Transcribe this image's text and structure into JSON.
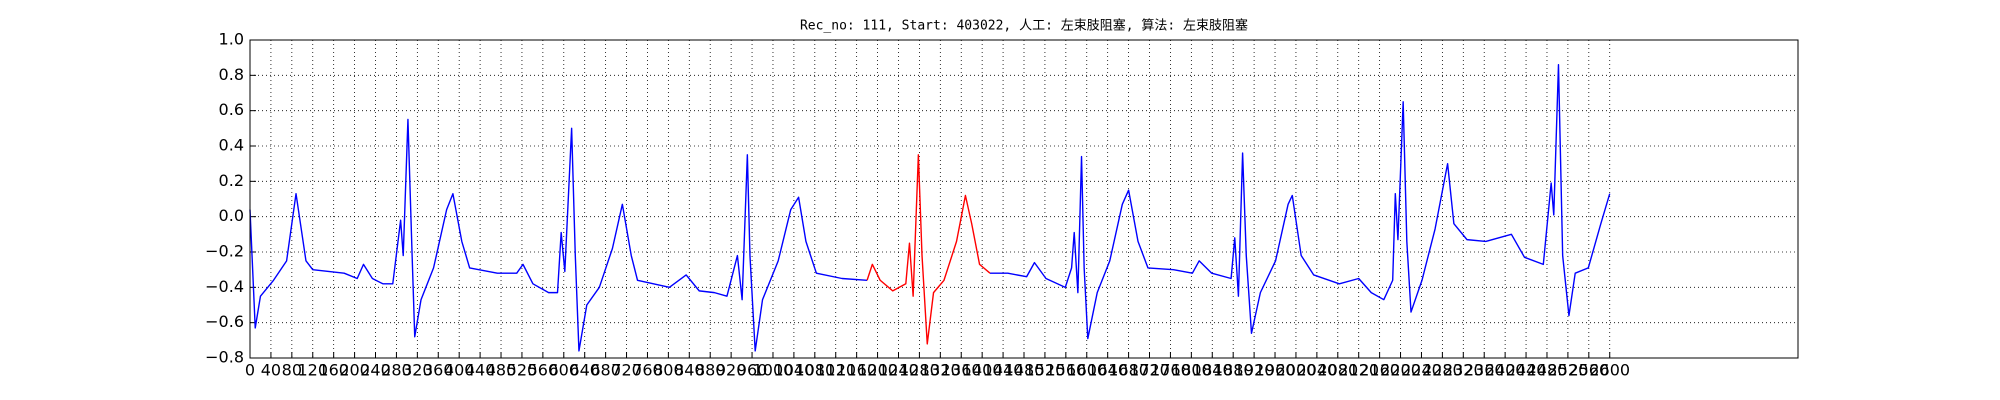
{
  "chart_data": {
    "type": "line",
    "title": "Rec_no: 111, Start: 403022, 人工: 左束肢阻塞, 算法: 左束肢阻塞",
    "x": [
      0,
      10,
      20,
      45,
      70,
      88,
      107,
      120,
      180,
      205,
      217,
      234,
      254,
      273,
      288,
      293,
      302,
      310,
      315,
      327,
      351,
      376,
      388,
      405,
      420,
      473,
      510,
      522,
      541,
      571,
      588,
      595,
      602,
      615,
      622,
      629,
      644,
      668,
      693,
      712,
      729,
      741,
      802,
      834,
      859,
      888,
      912,
      932,
      941,
      951,
      956,
      966,
      980,
      1010,
      1034,
      1049,
      1063,
      1083,
      1132,
      1180,
      1190,
      1205,
      1229,
      1254,
      1261,
      1268,
      1278,
      1285,
      1295,
      1307,
      1327,
      1351,
      1368,
      1380,
      1395,
      1415,
      1449,
      1485,
      1500,
      1522,
      1559,
      1571,
      1576,
      1583,
      1590,
      1595,
      1602,
      1620,
      1644,
      1668,
      1680,
      1698,
      1717,
      1766,
      1802,
      1815,
      1839,
      1876,
      1883,
      1890,
      1898,
      1905,
      1915,
      1932,
      1961,
      1985,
      1993,
      2010,
      2034,
      2083,
      2120,
      2144,
      2168,
      2185,
      2190,
      2195,
      2205,
      2212,
      2220,
      2241,
      2266,
      2290,
      2302,
      2327,
      2363,
      2412,
      2437,
      2473,
      2488,
      2493,
      2502,
      2510,
      2522,
      2534,
      2559,
      2583,
      2600
    ],
    "series": [
      {
        "color": "#0000ff",
        "values": [
          0.04,
          -0.63,
          -0.45,
          -0.36,
          -0.25,
          0.13,
          -0.25,
          -0.3,
          -0.32,
          -0.35,
          -0.27,
          -0.35,
          -0.38,
          -0.38,
          -0.02,
          -0.22,
          0.55,
          -0.22,
          -0.68,
          -0.47,
          -0.29,
          0.04,
          0.13,
          -0.14,
          -0.29,
          -0.32,
          -0.32,
          -0.27,
          -0.38,
          -0.43,
          -0.43,
          -0.09,
          -0.31,
          0.5,
          -0.22,
          -0.76,
          -0.5,
          -0.4,
          -0.18,
          0.07,
          -0.22,
          -0.36,
          -0.4,
          -0.33,
          -0.42,
          -0.43,
          -0.45,
          -0.22,
          -0.47,
          0.35,
          -0.22,
          -0.76,
          -0.47,
          -0.25,
          0.04,
          0.11,
          -0.14,
          -0.32,
          -0.35,
          -0.36,
          null,
          null,
          null,
          null,
          null,
          null,
          null,
          null,
          null,
          null,
          null,
          null,
          null,
          null,
          null,
          -0.32,
          -0.32,
          -0.34,
          -0.26,
          -0.35,
          -0.4,
          -0.29,
          -0.09,
          -0.43,
          0.34,
          -0.29,
          -0.69,
          -0.43,
          -0.25,
          0.07,
          0.15,
          -0.14,
          -0.29,
          -0.3,
          -0.32,
          -0.25,
          -0.32,
          -0.35,
          -0.12,
          -0.45,
          0.36,
          -0.22,
          -0.66,
          -0.43,
          -0.25,
          0.07,
          0.12,
          -0.22,
          -0.33,
          -0.38,
          -0.35,
          -0.43,
          -0.47,
          -0.36,
          0.13,
          -0.13,
          0.65,
          -0.14,
          -0.54,
          -0.36,
          -0.07,
          0.3,
          -0.04,
          -0.13,
          -0.14,
          -0.1,
          -0.23,
          -0.27,
          0.19,
          0.01,
          0.86,
          -0.22,
          -0.56,
          -0.32,
          -0.29,
          -0.04,
          0.13
        ]
      },
      {
        "color": "#ff0000",
        "values": [
          null,
          null,
          null,
          null,
          null,
          null,
          null,
          null,
          null,
          null,
          null,
          null,
          null,
          null,
          null,
          null,
          null,
          null,
          null,
          null,
          null,
          null,
          null,
          null,
          null,
          null,
          null,
          null,
          null,
          null,
          null,
          null,
          null,
          null,
          null,
          null,
          null,
          null,
          null,
          null,
          null,
          null,
          null,
          null,
          null,
          null,
          null,
          null,
          null,
          null,
          null,
          null,
          null,
          null,
          null,
          null,
          null,
          null,
          null,
          -0.36,
          -0.27,
          -0.36,
          -0.42,
          -0.38,
          -0.15,
          -0.45,
          0.35,
          -0.22,
          -0.72,
          -0.43,
          -0.36,
          -0.14,
          0.12,
          -0.04,
          -0.27,
          -0.32,
          null,
          null,
          null,
          null,
          null,
          null,
          null,
          null,
          null,
          null,
          null,
          null,
          null,
          null,
          null,
          null,
          null,
          null,
          null,
          null,
          null,
          null,
          null,
          null,
          null,
          null,
          null,
          null,
          null,
          null,
          null,
          null,
          null,
          null,
          null,
          null,
          null,
          null,
          null,
          null,
          null,
          null,
          null,
          null,
          null,
          null,
          null,
          null,
          null,
          null,
          null,
          null,
          null,
          null,
          null,
          null,
          null,
          null,
          null,
          null,
          null
        ]
      }
    ],
    "xlim": [
      0,
      2960
    ],
    "xticks": [
      0,
      40,
      80,
      120,
      160,
      200,
      240,
      280,
      320,
      360,
      400,
      440,
      480,
      520,
      560,
      600,
      640,
      680,
      720,
      760,
      800,
      840,
      880,
      920,
      960,
      1000,
      1040,
      1080,
      1120,
      1160,
      1200,
      1240,
      1280,
      1320,
      1360,
      1400,
      1440,
      1480,
      1520,
      1560,
      1600,
      1640,
      1680,
      1720,
      1760,
      1800,
      1840,
      1880,
      1920,
      1960,
      2000,
      2040,
      2080,
      2120,
      2160,
      2200,
      2240,
      2280,
      2320,
      2360,
      2400,
      2440,
      2480,
      2520,
      2560,
      2600
    ],
    "ylim": [
      -0.8,
      1.0
    ],
    "yticks": [
      {
        "value": -0.8,
        "label": "−0.8"
      },
      {
        "value": -0.6,
        "label": "−0.6"
      },
      {
        "value": -0.4,
        "label": "−0.4"
      },
      {
        "value": -0.2,
        "label": "−0.2"
      },
      {
        "value": 0,
        "label": "0.0"
      },
      {
        "value": 0.2,
        "label": "0.2"
      },
      {
        "value": 0.4,
        "label": "0.4"
      },
      {
        "value": 0.6,
        "label": "0.6"
      },
      {
        "value": 0.8,
        "label": "0.8"
      },
      {
        "value": 1.0,
        "label": "1.0"
      }
    ],
    "grid": true
  }
}
